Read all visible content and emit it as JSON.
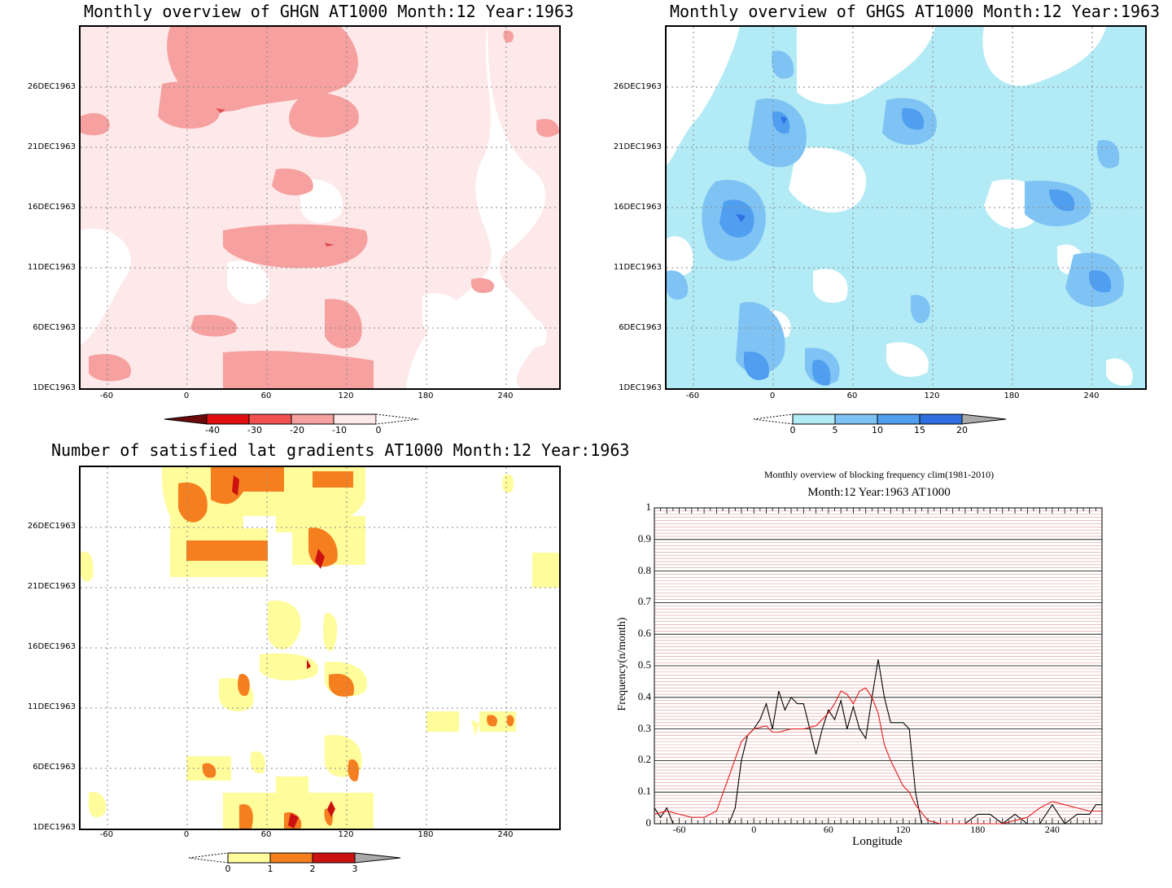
{
  "colors": {
    "ghgn": [
      "#fde9e9",
      "#fbc7c7",
      "#f6a0a0",
      "#f07070"
    ],
    "ghgs": [
      "#b2ebf5",
      "#7fc3f5",
      "#4f9ef0",
      "#2f6fe0"
    ],
    "lat": [
      "#fffc9c",
      "#fbb046",
      "#f57f1f",
      "#cc1111"
    ],
    "black_line": "#000000",
    "red_line": "#e41a1c",
    "grid_red": "#dd9999"
  },
  "y_ticks": [
    "26DEC1963",
    "21DEC1963",
    "16DEC1963",
    "11DEC1963",
    "6DEC1963",
    "1DEC1963"
  ],
  "x_ticks": [
    "-60",
    "0",
    "60",
    "120",
    "180",
    "240"
  ],
  "panels": {
    "ghgn": {
      "title": "Monthly overview of GHGN AT1000 Month:12 Year:1963",
      "colorbar_labels": [
        "-40",
        "-30",
        "-20",
        "-10",
        "0"
      ]
    },
    "ghgs": {
      "title": "Monthly overview of GHGS AT1000 Month:12 Year:1963",
      "colorbar_labels": [
        "0",
        "5",
        "10",
        "15",
        "20"
      ]
    },
    "lat": {
      "title": "Number of satisfied lat gradients AT1000 Month:12 Year:1963",
      "colorbar_labels": [
        "0",
        "1",
        "2",
        "3"
      ]
    },
    "line": {
      "title": "Monthly overview of blocking frequency clim(1981-2010)",
      "subtitle": "Month:12 Year:1963  AT1000",
      "xlabel": "Longitude",
      "ylabel": "Frequency(n/month)",
      "y_ticks": [
        "0",
        "0.1",
        "0.2",
        "0.3",
        "0.4",
        "0.5",
        "0.6",
        "0.7",
        "0.8",
        "0.9",
        "1"
      ],
      "x_ticks": [
        "-60",
        "0",
        "60",
        "120",
        "180",
        "240"
      ]
    }
  },
  "chart_data": [
    {
      "type": "heatmap",
      "title": "Monthly overview of GHGN AT1000 Month:12 Year:1963",
      "x_range": [
        -80,
        280
      ],
      "y_range": [
        "1DEC1963",
        "31DEC1963"
      ],
      "levels": [
        -40,
        -30,
        -20,
        -10,
        0
      ]
    },
    {
      "type": "heatmap",
      "title": "Monthly overview of GHGS AT1000 Month:12 Year:1963",
      "x_range": [
        -80,
        280
      ],
      "y_range": [
        "1DEC1963",
        "31DEC1963"
      ],
      "levels": [
        0,
        5,
        10,
        15,
        20
      ]
    },
    {
      "type": "heatmap",
      "title": "Number of satisfied lat gradients AT1000 Month:12 Year:1963",
      "x_range": [
        -80,
        280
      ],
      "y_range": [
        "1DEC1963",
        "31DEC1963"
      ],
      "levels": [
        0,
        1,
        2,
        3
      ]
    },
    {
      "type": "line",
      "title": "Monthly overview of blocking frequency clim(1981-2010)",
      "subtitle": "Month:12 Year:1963  AT1000",
      "xlabel": "Longitude",
      "ylabel": "Frequency(n/month)",
      "xlim": [
        -80,
        280
      ],
      "ylim": [
        0,
        1
      ],
      "series": [
        {
          "color": "#000000",
          "x": [
            -80,
            -75,
            -70,
            -65,
            -60,
            -50,
            -40,
            -30,
            -20,
            -15,
            -10,
            -5,
            0,
            5,
            10,
            15,
            20,
            25,
            30,
            35,
            40,
            45,
            50,
            55,
            60,
            65,
            70,
            75,
            80,
            85,
            90,
            95,
            100,
            105,
            110,
            115,
            120,
            125,
            130,
            135,
            140,
            150,
            160,
            170,
            180,
            190,
            200,
            210,
            220,
            230,
            240,
            250,
            260,
            270,
            275,
            280
          ],
          "y": [
            0.05,
            0.02,
            0.05,
            0.0,
            0.0,
            0.0,
            0.0,
            0.0,
            0.0,
            0.05,
            0.2,
            0.28,
            0.3,
            0.33,
            0.38,
            0.3,
            0.42,
            0.36,
            0.4,
            0.38,
            0.38,
            0.3,
            0.22,
            0.3,
            0.36,
            0.33,
            0.39,
            0.3,
            0.37,
            0.3,
            0.27,
            0.4,
            0.52,
            0.4,
            0.32,
            0.32,
            0.32,
            0.3,
            0.1,
            0.0,
            0.0,
            0.0,
            0.0,
            0.0,
            0.03,
            0.03,
            0.0,
            0.03,
            0.0,
            0.0,
            0.06,
            0.0,
            0.03,
            0.03,
            0.06,
            0.06
          ]
        },
        {
          "color": "#e41a1c",
          "x": [
            -80,
            -70,
            -60,
            -50,
            -40,
            -30,
            -20,
            -10,
            0,
            10,
            15,
            20,
            30,
            40,
            50,
            60,
            65,
            70,
            75,
            80,
            85,
            90,
            95,
            100,
            105,
            110,
            115,
            120,
            125,
            130,
            140,
            150,
            160,
            180,
            200,
            220,
            230,
            240,
            250,
            260,
            270,
            280
          ],
          "y": [
            0.03,
            0.04,
            0.03,
            0.02,
            0.02,
            0.04,
            0.15,
            0.26,
            0.3,
            0.31,
            0.29,
            0.29,
            0.3,
            0.3,
            0.31,
            0.35,
            0.38,
            0.42,
            0.41,
            0.38,
            0.42,
            0.43,
            0.4,
            0.35,
            0.25,
            0.2,
            0.16,
            0.12,
            0.1,
            0.06,
            0.01,
            0.0,
            0.0,
            0.0,
            0.0,
            0.02,
            0.05,
            0.07,
            0.06,
            0.05,
            0.04,
            0.04
          ]
        }
      ]
    }
  ]
}
